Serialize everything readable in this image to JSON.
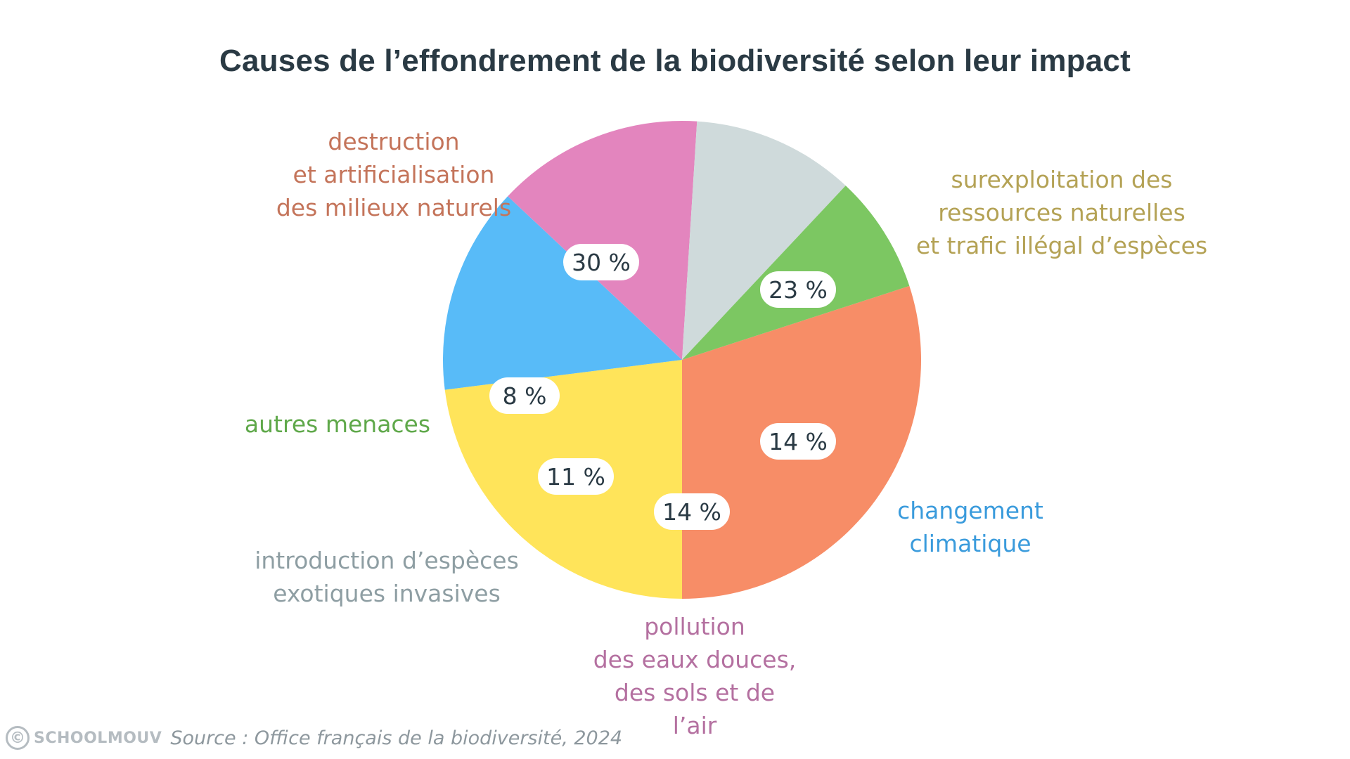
{
  "chart_data": {
    "type": "pie",
    "title": "Causes de l’effondrement de la biodiversité selon leur impact",
    "slices": [
      {
        "label": "destruction\net artificialisation\ndes milieux naturels",
        "value": 30,
        "value_label": "30 %",
        "color": "#f78d67",
        "label_color": "#c4745a"
      },
      {
        "label": "surexploitation des\nressources naturelles\net trafic illégal d’espèces",
        "value": 23,
        "value_label": "23 %",
        "color": "#ffe45a",
        "label_color": "#b4a255"
      },
      {
        "label": "changement\nclimatique",
        "value": 14,
        "value_label": "14 %",
        "color": "#58bbf8",
        "label_color": "#3a9bdc"
      },
      {
        "label": "pollution\ndes eaux douces,\ndes sols et de l’air",
        "value": 14,
        "value_label": "14 %",
        "color": "#e385be",
        "label_color": "#b470a0"
      },
      {
        "label": "introduction d’espèces\nexotiques invasives",
        "value": 11,
        "value_label": "11 %",
        "color": "#cfdadb",
        "label_color": "#8e9ea3"
      },
      {
        "label": "autres menaces",
        "value": 8,
        "value_label": "8 %",
        "color": "#7cc762",
        "label_color": "#5fa84a"
      }
    ]
  },
  "footer": {
    "brand_icon": "©",
    "brand": "SCHOOLMOUV",
    "source": "Source : Office français de la biodiversité, 2024"
  }
}
